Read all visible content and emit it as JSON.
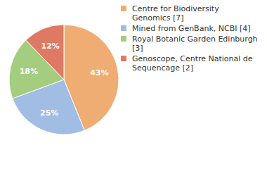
{
  "chart_data": {
    "type": "pie",
    "categories": [
      "Centre for Biodiversity Genomics [7]",
      "Mined from GenBank, NCBI [4]",
      "Royal Botanic Garden Edinburgh [3]",
      "Genoscope, Centre National de Sequencage [2]"
    ],
    "values": [
      43,
      25,
      18,
      12
    ],
    "value_labels": [
      "43%",
      "25%",
      "18%",
      "12%"
    ],
    "data_labels": true,
    "colors": [
      "#EFAC73",
      "#A2BDE3",
      "#A5CD7F",
      "#DE7A63"
    ],
    "legend": "upper right"
  }
}
